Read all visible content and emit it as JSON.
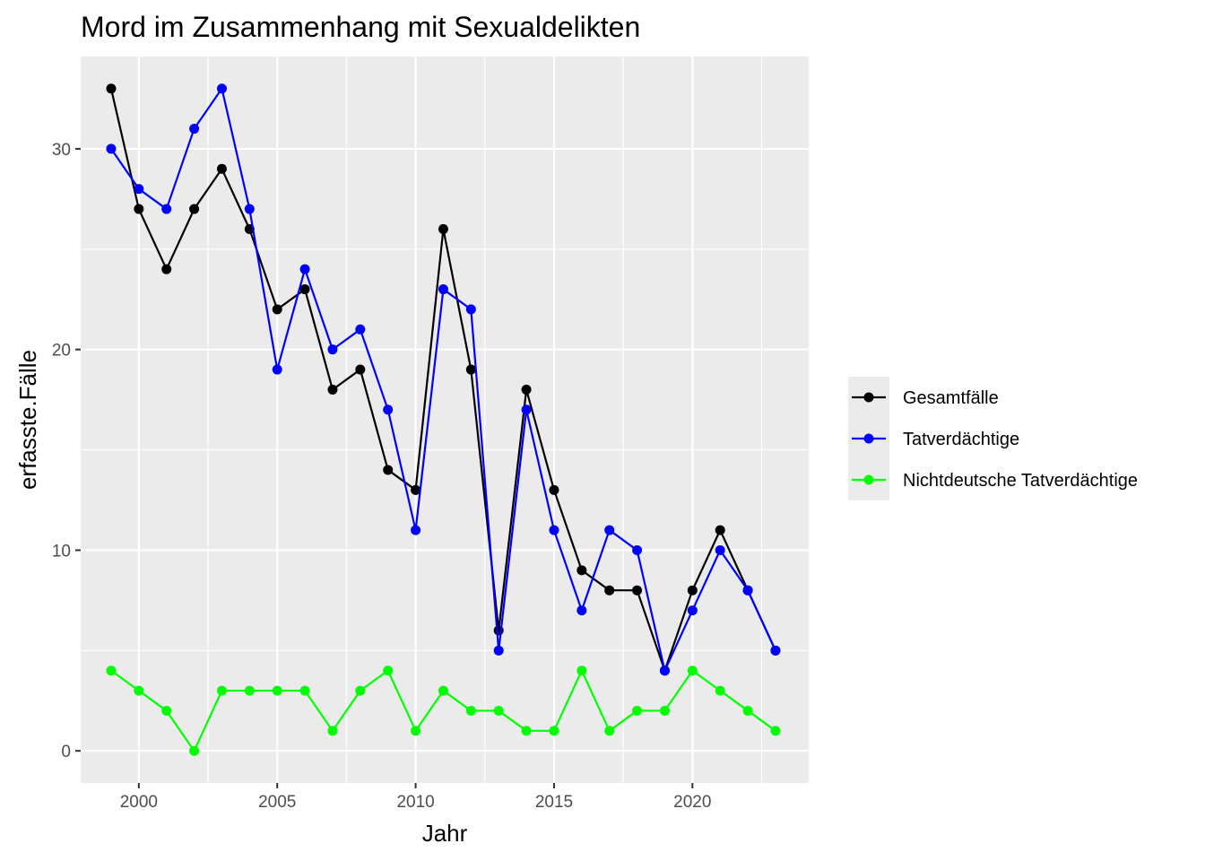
{
  "chart_data": {
    "type": "line",
    "title": "Mord im Zusammenhang mit Sexualdelikten",
    "xlabel": "Jahr",
    "ylabel": "erfasste.Fälle",
    "x": [
      1999,
      2000,
      2001,
      2002,
      2003,
      2004,
      2005,
      2006,
      2007,
      2008,
      2009,
      2010,
      2011,
      2012,
      2013,
      2014,
      2015,
      2016,
      2017,
      2018,
      2019,
      2020,
      2021,
      2022,
      2023
    ],
    "xlim": [
      1997.9,
      2024.2
    ],
    "ylim": [
      -1.6,
      34.6
    ],
    "x_ticks": [
      2000,
      2005,
      2010,
      2015,
      2020
    ],
    "y_ticks": [
      0,
      10,
      20,
      30
    ],
    "grid": true,
    "legend_position": "right",
    "series": [
      {
        "name": "Gesamtfälle",
        "color": "#000000",
        "values": [
          33,
          27,
          24,
          27,
          29,
          26,
          22,
          23,
          18,
          19,
          14,
          13,
          26,
          19,
          6,
          18,
          13,
          9,
          8,
          8,
          4,
          8,
          11,
          8,
          5
        ]
      },
      {
        "name": "Tatverdächtige",
        "color": "#0000ff",
        "values": [
          30,
          28,
          27,
          31,
          33,
          27,
          19,
          24,
          20,
          21,
          17,
          11,
          23,
          22,
          5,
          17,
          11,
          7,
          11,
          10,
          4,
          7,
          10,
          8,
          5
        ]
      },
      {
        "name": "Nichtdeutsche Tatverdächtige",
        "color": "#00ff00",
        "values": [
          4,
          3,
          2,
          0,
          3,
          3,
          3,
          3,
          1,
          3,
          4,
          1,
          3,
          2,
          2,
          1,
          1,
          4,
          1,
          2,
          2,
          4,
          3,
          2,
          1
        ]
      }
    ]
  }
}
